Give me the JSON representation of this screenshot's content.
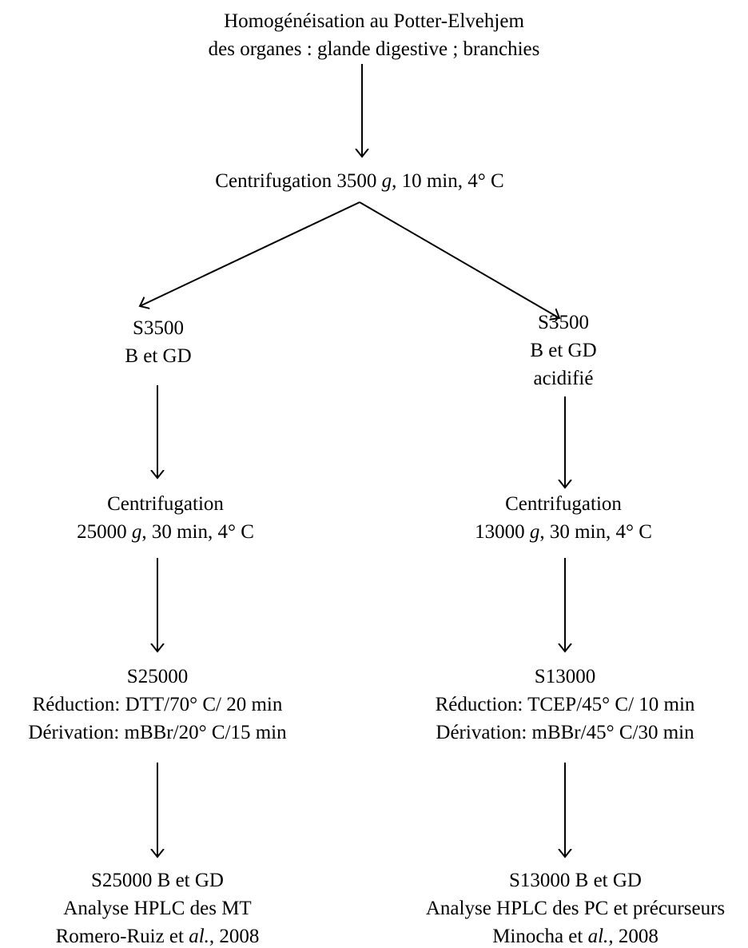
{
  "nodes": [
    {
      "lines": [
        [
          {
            "text": "Homogénéisation au Potter-Elvehjem"
          }
        ],
        [
          {
            "text": "des organes : glande digestive ; branchies"
          }
        ]
      ]
    },
    {
      "lines": [
        [
          {
            "text": "Centrifugation 3500 "
          },
          {
            "text": "g",
            "italic": true
          },
          {
            "text": ", 10 min, 4° C"
          }
        ]
      ]
    },
    {
      "lines": [
        [
          {
            "text": "S3500"
          }
        ],
        [
          {
            "text": "B et GD"
          }
        ]
      ]
    },
    {
      "lines": [
        [
          {
            "text": "S3500"
          }
        ],
        [
          {
            "text": "B et GD"
          }
        ],
        [
          {
            "text": "acidifié"
          }
        ]
      ]
    },
    {
      "lines": [
        [
          {
            "text": "Centrifugation"
          }
        ],
        [
          {
            "text": "25000 "
          },
          {
            "text": "g",
            "italic": true
          },
          {
            "text": ", 30 min, 4° C"
          }
        ]
      ]
    },
    {
      "lines": [
        [
          {
            "text": "Centrifugation"
          }
        ],
        [
          {
            "text": "13000 "
          },
          {
            "text": "g",
            "italic": true
          },
          {
            "text": ", 30 min, 4° C"
          }
        ]
      ]
    },
    {
      "lines": [
        [
          {
            "text": "S25000"
          }
        ],
        [
          {
            "text": "Réduction: DTT/70° C/ 20 min"
          }
        ],
        [
          {
            "text": "Dérivation: mBBr/20° C/15 min"
          }
        ]
      ]
    },
    {
      "lines": [
        [
          {
            "text": "S13000"
          }
        ],
        [
          {
            "text": "Réduction: TCEP/45° C/ 10 min"
          }
        ],
        [
          {
            "text": "Dérivation: mBBr/45° C/30 min"
          }
        ]
      ]
    },
    {
      "lines": [
        [
          {
            "text": "S25000 B et GD"
          }
        ],
        [
          {
            "text": "Analyse HPLC des MT"
          }
        ],
        [
          {
            "text": "Romero-Ruiz et "
          },
          {
            "text": "al.",
            "italic": true
          },
          {
            "text": ", 2008"
          }
        ]
      ]
    },
    {
      "lines": [
        [
          {
            "text": "S13000 B et GD"
          }
        ],
        [
          {
            "text": "Analyse HPLC des PC et précurseurs"
          }
        ],
        [
          {
            "text": "Minocha et "
          },
          {
            "text": "al.",
            "italic": true
          },
          {
            "text": ", 2008"
          }
        ]
      ]
    }
  ]
}
